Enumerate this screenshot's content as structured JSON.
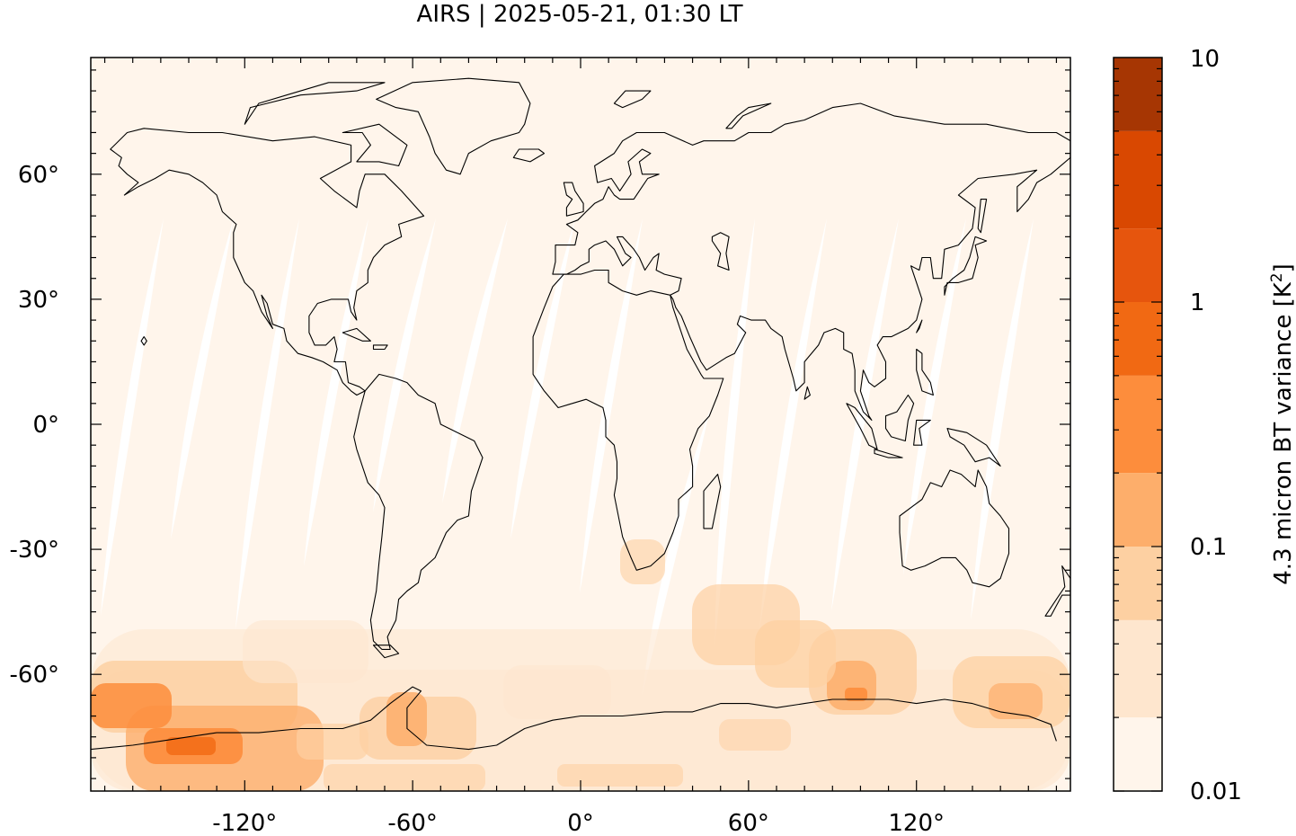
{
  "map": {
    "title": "AIRS | 2025-05-21, 01:30 LT",
    "projection": "plate-carree",
    "lon_range": [
      -175,
      175
    ],
    "lat_range": [
      -88,
      88
    ],
    "x_tick_values": [
      -120,
      -60,
      0,
      60,
      120
    ],
    "x_tick_labels": [
      "-120°",
      "-60°",
      "0°",
      "60°",
      "120°"
    ],
    "y_tick_values": [
      60,
      30,
      0,
      -30,
      -60
    ],
    "y_tick_labels": [
      "60°",
      "30°",
      "0°",
      "-30°",
      "-60°"
    ],
    "background_color": "#fff5eb",
    "coastline_color": "#000000"
  },
  "colorbar": {
    "label_text": "4.3 micron BT variance [K",
    "label_sup": "2",
    "label_close": "]",
    "scale": "log",
    "range": [
      0.01,
      10
    ],
    "tick_values": [
      10,
      1,
      0.1,
      0.01
    ],
    "tick_labels": [
      "10",
      "1",
      "0.1",
      "0.01"
    ],
    "levels": [
      0.01,
      0.02,
      0.05,
      0.1,
      0.2,
      0.5,
      1,
      2,
      5,
      10
    ],
    "colors": [
      "#fff5eb",
      "#fee6ce",
      "#fdd0a2",
      "#fdae6b",
      "#fd8d3c",
      "#f16913",
      "#e6550d",
      "#d94801",
      "#a63603"
    ]
  }
}
